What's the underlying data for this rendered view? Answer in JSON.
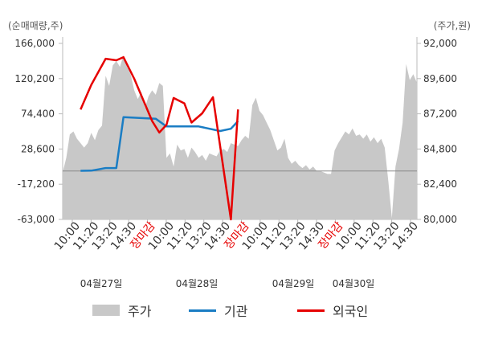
{
  "header": {
    "left_unit": "(순매매량,주)",
    "right_unit": "(주가,원)"
  },
  "colors": {
    "price_area": "#c8c8c8",
    "institution_line": "#1a7dc4",
    "foreign_line": "#e60000",
    "close_label": "#e60000"
  },
  "chart_data": {
    "type": "line",
    "left_axis": {
      "range": [
        -63000,
        166000
      ],
      "ticks": [
        "166,000",
        "120,200",
        "74,400",
        "28,600",
        "-17,200",
        "-63,000"
      ]
    },
    "right_axis": {
      "range": [
        80000,
        92000
      ],
      "ticks": [
        "92,000",
        "89,600",
        "87,200",
        "84,800",
        "82,400",
        "80,000"
      ]
    },
    "x_tick_labels": [
      "10:00",
      "11:20",
      "13:20",
      "14:30",
      "장마감",
      "10:00",
      "11:20",
      "13:20",
      "14:30",
      "장마감",
      "10:00",
      "11:20",
      "13:20",
      "14:30",
      "장마감",
      "10:00",
      "11:20",
      "13:20",
      "14:30"
    ],
    "date_labels": [
      "04월27일",
      "04월28일",
      "04월29일",
      "04월30일"
    ],
    "series": [
      {
        "name": "주가",
        "kind": "area",
        "axis": "right",
        "values": [
          83200,
          84200,
          85800,
          86000,
          85500,
          85200,
          84900,
          85200,
          85900,
          85400,
          86100,
          86400,
          89800,
          89100,
          90500,
          90800,
          90400,
          91200,
          90400,
          89900,
          88800,
          88200,
          88700,
          87600,
          88400,
          88800,
          88500,
          89300,
          89100,
          84200,
          84500,
          83600,
          85100,
          84700,
          84800,
          84200,
          84900,
          84600,
          84200,
          84400,
          84000,
          84500,
          84400,
          84300,
          84700,
          84800,
          84600,
          85200,
          85100,
          85000,
          85400,
          85700,
          85500,
          87800,
          88300,
          87400,
          87100,
          86600,
          86100,
          85400,
          84700,
          84900,
          85500,
          84200,
          83800,
          84000,
          83700,
          83500,
          83700,
          83400,
          83600,
          83300,
          83300,
          83200,
          83100,
          83100,
          84700,
          85200,
          85600,
          86000,
          85800,
          86200,
          85700,
          85800,
          85500,
          85800,
          85300,
          85600,
          85200,
          85500,
          84900,
          82600,
          80100,
          83600,
          84800,
          86600,
          90600,
          89500,
          89900,
          89300
        ]
      },
      {
        "name": "기관",
        "kind": "line",
        "axis": "left",
        "values": [
          null,
          null,
          null,
          null,
          null,
          300,
          null,
          null,
          500,
          null,
          null,
          null,
          3800,
          null,
          null,
          3800,
          null,
          70000,
          null,
          null,
          null,
          null,
          null,
          null,
          null,
          null,
          68000,
          null,
          null,
          58000,
          null,
          null,
          null,
          null,
          null,
          null,
          null,
          null,
          58000,
          null,
          null,
          null,
          null,
          null,
          52000,
          null,
          null,
          55000,
          null,
          65000
        ]
      },
      {
        "name": "외국인",
        "kind": "line",
        "axis": "left",
        "values": [
          null,
          null,
          null,
          null,
          null,
          80000,
          null,
          null,
          112000,
          null,
          null,
          null,
          146000,
          null,
          null,
          144000,
          null,
          148000,
          null,
          null,
          120000,
          null,
          null,
          null,
          null,
          65000,
          null,
          50000,
          null,
          60000,
          null,
          95000,
          null,
          null,
          88000,
          null,
          63000,
          null,
          null,
          75000,
          null,
          null,
          96000,
          null,
          null,
          null,
          null,
          -63000,
          null,
          80000
        ]
      }
    ],
    "grid": false,
    "legend_position": "bottom"
  },
  "legend": {
    "items": [
      {
        "label": "주가",
        "type": "area",
        "color": "#c8c8c8"
      },
      {
        "label": "기관",
        "type": "line",
        "color": "#1a7dc4"
      },
      {
        "label": "외국인",
        "type": "line",
        "color": "#e60000"
      }
    ]
  }
}
